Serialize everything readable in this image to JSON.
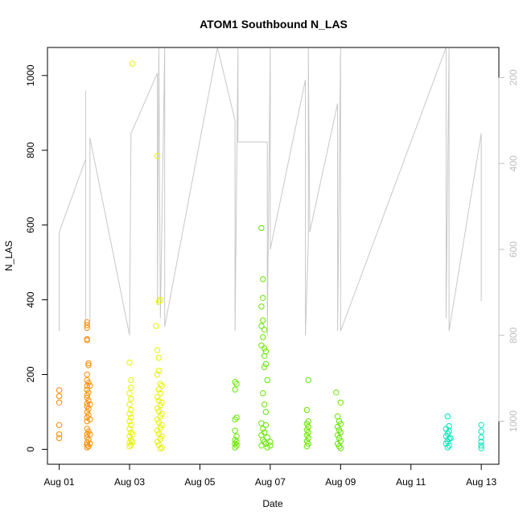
{
  "chart_data": {
    "type": "scatter",
    "title": "ATOM1 Southbound N_LAS",
    "xlabel": "Date",
    "ylabel": "N_LAS",
    "x_ticks": [
      "Aug 01",
      "Aug 03",
      "Aug 05",
      "Aug 07",
      "Aug 09",
      "Aug 11",
      "Aug 13"
    ],
    "y_ticks": [
      0,
      200,
      400,
      600,
      800,
      1000
    ],
    "y_right_ticks": [
      200,
      400,
      600,
      800,
      1000
    ],
    "xlim": [
      "2024-07-31T16:00",
      "2024-08-13T12:00"
    ],
    "ylim": [
      -40,
      1075
    ],
    "y_right_lim": [
      1100,
      130
    ],
    "grid": false,
    "point_colors": {
      "Aug 01-02": "#FF8C00",
      "Aug 03-04": "#E6F200",
      "Aug 06-09": "#66E600",
      "Aug 12-13": "#00E6B8"
    },
    "trace_color": "#C8C8C8",
    "series": [
      {
        "group": "Aug 01-02",
        "color": "#FF8C00",
        "points": [
          [
            "2024-08-01T00:00",
            158
          ],
          [
            "2024-08-01T00:00",
            142
          ],
          [
            "2024-08-01T00:00",
            125
          ],
          [
            "2024-08-01T00:00",
            65
          ],
          [
            "2024-08-01T00:00",
            40
          ],
          [
            "2024-08-01T00:00",
            30
          ],
          [
            "2024-08-01T19:00",
            340
          ],
          [
            "2024-08-01T19:00",
            332
          ],
          [
            "2024-08-01T19:00",
            325
          ],
          [
            "2024-08-01T19:00",
            295
          ],
          [
            "2024-08-01T19:00",
            292
          ],
          [
            "2024-08-01T20:00",
            230
          ],
          [
            "2024-08-01T20:00",
            225
          ],
          [
            "2024-08-01T19:00",
            200
          ],
          [
            "2024-08-01T19:00",
            185
          ],
          [
            "2024-08-01T20:00",
            178
          ],
          [
            "2024-08-01T19:00",
            170
          ],
          [
            "2024-08-01T19:00",
            160
          ],
          [
            "2024-08-01T20:00",
            152
          ],
          [
            "2024-08-01T19:00",
            145
          ],
          [
            "2024-08-01T19:00",
            138
          ],
          [
            "2024-08-01T20:00",
            130
          ],
          [
            "2024-08-01T19:00",
            122
          ],
          [
            "2024-08-01T19:00",
            115
          ],
          [
            "2024-08-01T20:00",
            108
          ],
          [
            "2024-08-01T19:00",
            100
          ],
          [
            "2024-08-01T20:00",
            92
          ],
          [
            "2024-08-01T19:00",
            85
          ],
          [
            "2024-08-01T19:00",
            75
          ],
          [
            "2024-08-01T19:00",
            55
          ],
          [
            "2024-08-01T20:00",
            48
          ],
          [
            "2024-08-01T19:00",
            40
          ],
          [
            "2024-08-01T19:00",
            32
          ],
          [
            "2024-08-01T20:00",
            25
          ],
          [
            "2024-08-01T19:00",
            18
          ],
          [
            "2024-08-01T19:00",
            12
          ],
          [
            "2024-08-01T20:00",
            8
          ],
          [
            "2024-08-01T19:00",
            5
          ],
          [
            "2024-08-01T21:00",
            170
          ],
          [
            "2024-08-01T21:00",
            120
          ],
          [
            "2024-08-01T21:00",
            80
          ],
          [
            "2024-08-01T21:00",
            40
          ],
          [
            "2024-08-01T21:00",
            15
          ]
        ]
      },
      {
        "group": "Aug 03-04",
        "color": "#E6F200",
        "points": [
          [
            "2024-08-03T02:00",
            1032
          ],
          [
            "2024-08-03T00:00",
            232
          ],
          [
            "2024-08-03T01:00",
            185
          ],
          [
            "2024-08-03T01:00",
            165
          ],
          [
            "2024-08-03T00:00",
            150
          ],
          [
            "2024-08-03T01:00",
            135
          ],
          [
            "2024-08-03T00:00",
            120
          ],
          [
            "2024-08-03T01:00",
            105
          ],
          [
            "2024-08-03T00:00",
            95
          ],
          [
            "2024-08-03T01:00",
            85
          ],
          [
            "2024-08-03T00:00",
            75
          ],
          [
            "2024-08-03T01:00",
            65
          ],
          [
            "2024-08-03T00:00",
            55
          ],
          [
            "2024-08-03T01:00",
            45
          ],
          [
            "2024-08-03T00:00",
            35
          ],
          [
            "2024-08-03T01:00",
            25
          ],
          [
            "2024-08-03T00:00",
            18
          ],
          [
            "2024-08-03T01:00",
            12
          ],
          [
            "2024-08-03T00:00",
            8
          ],
          [
            "2024-08-03T02:00",
            40
          ],
          [
            "2024-08-03T02:00",
            20
          ],
          [
            "2024-08-03T19:00",
            785
          ],
          [
            "2024-08-03T21:00",
            400
          ],
          [
            "2024-08-03T20:00",
            395
          ],
          [
            "2024-08-03T18:00",
            330
          ],
          [
            "2024-08-03T19:00",
            265
          ],
          [
            "2024-08-03T20:00",
            245
          ],
          [
            "2024-08-03T20:00",
            210
          ],
          [
            "2024-08-03T19:00",
            200
          ],
          [
            "2024-08-03T21:00",
            175
          ],
          [
            "2024-08-03T22:00",
            170
          ],
          [
            "2024-08-03T20:00",
            160
          ],
          [
            "2024-08-03T21:00",
            150
          ],
          [
            "2024-08-03T19:00",
            140
          ],
          [
            "2024-08-03T20:00",
            130
          ],
          [
            "2024-08-03T22:00",
            125
          ],
          [
            "2024-08-03T21:00",
            118
          ],
          [
            "2024-08-03T19:00",
            110
          ],
          [
            "2024-08-03T20:00",
            102
          ],
          [
            "2024-08-03T22:00",
            95
          ],
          [
            "2024-08-03T21:00",
            88
          ],
          [
            "2024-08-03T19:00",
            80
          ],
          [
            "2024-08-03T20:00",
            72
          ],
          [
            "2024-08-03T22:00",
            65
          ],
          [
            "2024-08-03T21:00",
            58
          ],
          [
            "2024-08-03T19:00",
            50
          ],
          [
            "2024-08-03T20:00",
            42
          ],
          [
            "2024-08-03T22:00",
            35
          ],
          [
            "2024-08-03T21:00",
            28
          ],
          [
            "2024-08-03T19:00",
            20
          ],
          [
            "2024-08-03T20:00",
            12
          ],
          [
            "2024-08-03T22:00",
            5
          ],
          [
            "2024-08-03T21:00",
            2
          ]
        ]
      },
      {
        "group": "Aug 06-09",
        "color": "#66E600",
        "points": [
          [
            "2024-08-06T00:00",
            180
          ],
          [
            "2024-08-06T01:00",
            175
          ],
          [
            "2024-08-06T00:00",
            160
          ],
          [
            "2024-08-06T01:00",
            85
          ],
          [
            "2024-08-06T00:00",
            80
          ],
          [
            "2024-08-06T00:00",
            50
          ],
          [
            "2024-08-06T01:00",
            35
          ],
          [
            "2024-08-06T00:00",
            25
          ],
          [
            "2024-08-06T01:00",
            20
          ],
          [
            "2024-08-06T00:00",
            15
          ],
          [
            "2024-08-06T01:00",
            10
          ],
          [
            "2024-08-06T00:00",
            5
          ],
          [
            "2024-08-06T18:00",
            592
          ],
          [
            "2024-08-06T19:00",
            455
          ],
          [
            "2024-08-06T19:00",
            405
          ],
          [
            "2024-08-06T18:00",
            382
          ],
          [
            "2024-08-06T19:00",
            345
          ],
          [
            "2024-08-06T18:00",
            330
          ],
          [
            "2024-08-06T20:00",
            320
          ],
          [
            "2024-08-06T19:00",
            300
          ],
          [
            "2024-08-06T18:00",
            278
          ],
          [
            "2024-08-06T20:00",
            270
          ],
          [
            "2024-08-06T21:00",
            262
          ],
          [
            "2024-08-06T20:00",
            250
          ],
          [
            "2024-08-06T21:00",
            228
          ],
          [
            "2024-08-06T20:00",
            220
          ],
          [
            "2024-08-06T22:00",
            185
          ],
          [
            "2024-08-06T19:00",
            150
          ],
          [
            "2024-08-06T20:00",
            120
          ],
          [
            "2024-08-06T21:00",
            100
          ],
          [
            "2024-08-06T18:00",
            70
          ],
          [
            "2024-08-06T21:00",
            65
          ],
          [
            "2024-08-06T19:00",
            55
          ],
          [
            "2024-08-06T20:00",
            45
          ],
          [
            "2024-08-06T18:00",
            38
          ],
          [
            "2024-08-06T22:00",
            32
          ],
          [
            "2024-08-06T19:00",
            25
          ],
          [
            "2024-08-06T20:00",
            20
          ],
          [
            "2024-08-06T21:00",
            15
          ],
          [
            "2024-08-06T18:00",
            10
          ],
          [
            "2024-08-06T22:00",
            5
          ],
          [
            "2024-08-07T00:00",
            20
          ],
          [
            "2024-08-07T00:00",
            10
          ],
          [
            "2024-08-08T02:00",
            185
          ],
          [
            "2024-08-08T01:00",
            105
          ],
          [
            "2024-08-08T02:00",
            75
          ],
          [
            "2024-08-08T01:00",
            68
          ],
          [
            "2024-08-08T02:00",
            60
          ],
          [
            "2024-08-08T01:00",
            52
          ],
          [
            "2024-08-08T02:00",
            45
          ],
          [
            "2024-08-08T01:00",
            38
          ],
          [
            "2024-08-08T02:00",
            30
          ],
          [
            "2024-08-08T01:00",
            22
          ],
          [
            "2024-08-08T02:00",
            15
          ],
          [
            "2024-08-08T01:00",
            8
          ],
          [
            "2024-08-08T21:00",
            152
          ],
          [
            "2024-08-09T00:00",
            125
          ],
          [
            "2024-08-08T22:00",
            88
          ],
          [
            "2024-08-08T23:00",
            75
          ],
          [
            "2024-08-09T00:00",
            68
          ],
          [
            "2024-08-08T22:00",
            60
          ],
          [
            "2024-08-08T23:00",
            52
          ],
          [
            "2024-08-09T00:00",
            45
          ],
          [
            "2024-08-08T22:00",
            38
          ],
          [
            "2024-08-08T23:00",
            30
          ],
          [
            "2024-08-09T00:00",
            22
          ],
          [
            "2024-08-08T22:00",
            15
          ],
          [
            "2024-08-08T23:00",
            8
          ],
          [
            "2024-08-09T00:00",
            3
          ]
        ]
      },
      {
        "group": "Aug 12-13",
        "color": "#00E6B8",
        "points": [
          [
            "2024-08-12T01:00",
            88
          ],
          [
            "2024-08-12T02:00",
            62
          ],
          [
            "2024-08-12T00:00",
            55
          ],
          [
            "2024-08-12T02:00",
            48
          ],
          [
            "2024-08-12T01:00",
            42
          ],
          [
            "2024-08-12T00:00",
            35
          ],
          [
            "2024-08-12T02:00",
            28
          ],
          [
            "2024-08-12T01:00",
            22
          ],
          [
            "2024-08-12T00:00",
            15
          ],
          [
            "2024-08-12T02:00",
            10
          ],
          [
            "2024-08-12T01:00",
            5
          ],
          [
            "2024-08-12T03:00",
            30
          ],
          [
            "2024-08-13T00:00",
            65
          ],
          [
            "2024-08-13T00:00",
            48
          ],
          [
            "2024-08-13T00:00",
            32
          ],
          [
            "2024-08-13T00:00",
            20
          ],
          [
            "2024-08-13T00:00",
            10
          ],
          [
            "2024-08-13T00:00",
            3
          ]
        ]
      }
    ],
    "trace": {
      "axis": "right",
      "points": [
        [
          "2024-08-01T00:00",
          790
        ],
        [
          "2024-08-01T00:00",
          560
        ],
        [
          "2024-08-01T18:00",
          390
        ],
        [
          "2024-08-01T18:00",
          230
        ],
        [
          "2024-08-01T18:00",
          770
        ],
        [
          "2024-08-01T21:00",
          770
        ],
        [
          "2024-08-01T21:00",
          340
        ],
        [
          "2024-08-03T00:00",
          800
        ],
        [
          "2024-08-03T01:00",
          330
        ],
        [
          "2024-08-03T19:00",
          190
        ],
        [
          "2024-08-03T19:00",
          730
        ],
        [
          "2024-08-03T20:00",
          130
        ],
        [
          "2024-08-03T21:00",
          760
        ],
        [
          "2024-08-04T00:00",
          130
        ],
        [
          "2024-08-04T00:00",
          780
        ],
        [
          "2024-08-05T12:00",
          130
        ],
        [
          "2024-08-06T00:00",
          300
        ],
        [
          "2024-08-06T00:00",
          790
        ],
        [
          "2024-08-06T02:00",
          130
        ],
        [
          "2024-08-06T02:00",
          350
        ],
        [
          "2024-08-06T22:00",
          350
        ],
        [
          "2024-08-06T22:00",
          800
        ],
        [
          "2024-08-07T00:00",
          130
        ],
        [
          "2024-08-07T00:00",
          600
        ],
        [
          "2024-08-08T00:00",
          205
        ],
        [
          "2024-08-08T00:00",
          800
        ],
        [
          "2024-08-08T02:00",
          580
        ],
        [
          "2024-08-08T02:00",
          130
        ],
        [
          "2024-08-08T03:00",
          560
        ],
        [
          "2024-08-08T22:00",
          260
        ],
        [
          "2024-08-08T22:00",
          790
        ],
        [
          "2024-08-09T00:00",
          130
        ],
        [
          "2024-08-09T00:00",
          790
        ],
        [
          "2024-08-12T00:00",
          130
        ],
        [
          "2024-08-12T00:00",
          760
        ],
        [
          "2024-08-12T02:00",
          130
        ],
        [
          "2024-08-12T02:00",
          790
        ],
        [
          "2024-08-13T00:00",
          330
        ],
        [
          "2024-08-13T00:00",
          720
        ]
      ]
    }
  }
}
